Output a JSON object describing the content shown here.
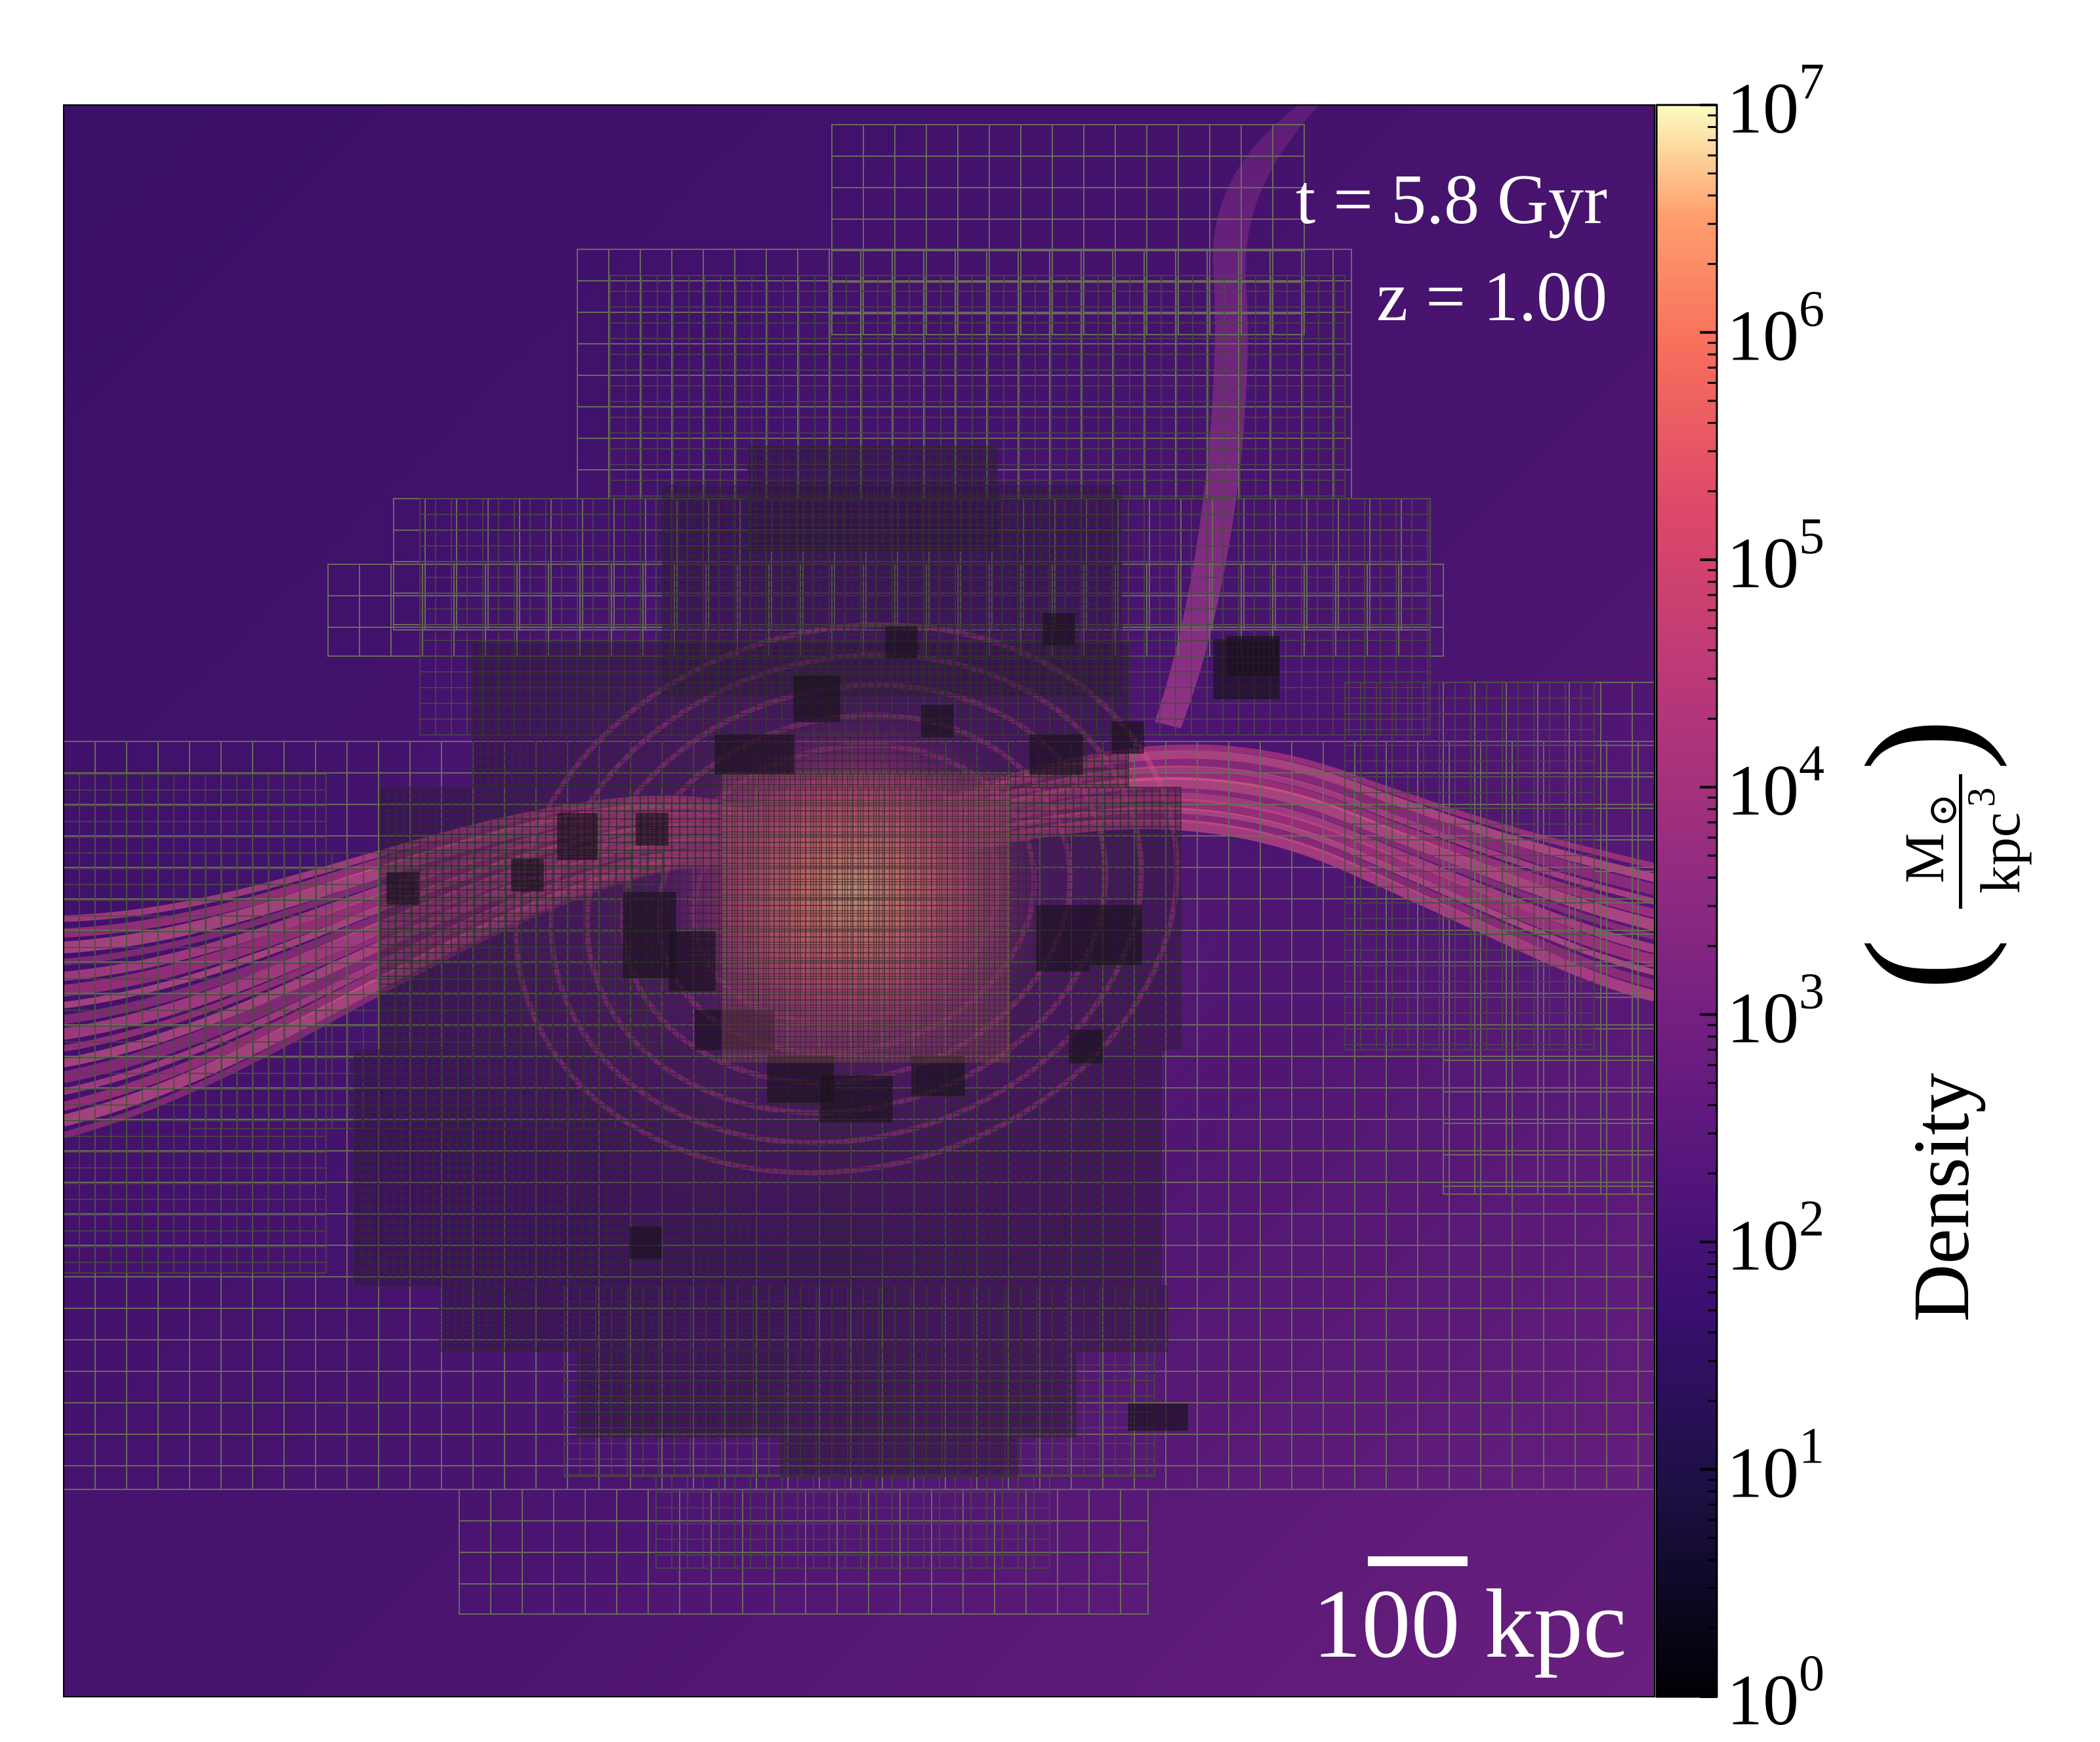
{
  "figure": {
    "time_label": "t = 5.8 Gyr",
    "redshift_label": "z = 1.00",
    "scale_bar_label": "100 kpc"
  },
  "colorbar": {
    "title": "Density",
    "unit_numerator": "M",
    "unit_sun_symbol": "⊙",
    "unit_denominator_base": "kpc",
    "unit_denominator_exponent": "3",
    "scale": "log",
    "range": [
      1,
      10000000
    ],
    "colormap": "magma",
    "ticks": [
      {
        "base": "10",
        "exp": "0"
      },
      {
        "base": "10",
        "exp": "1"
      },
      {
        "base": "10",
        "exp": "2"
      },
      {
        "base": "10",
        "exp": "3"
      },
      {
        "base": "10",
        "exp": "4"
      },
      {
        "base": "10",
        "exp": "5"
      },
      {
        "base": "10",
        "exp": "6"
      },
      {
        "base": "10",
        "exp": "7"
      }
    ]
  },
  "colors": {
    "background_medium": "#3b0f70",
    "mesh_coarse": "#5a5a52",
    "mesh_fine": "#2a2a28",
    "stream": "#e8598a",
    "core": "#fdc06b"
  }
}
